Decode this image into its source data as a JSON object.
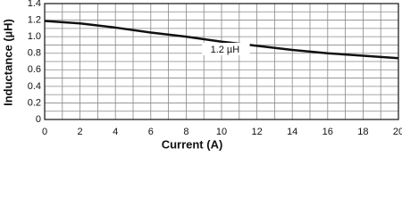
{
  "chart_data": {
    "type": "line",
    "x": [
      0,
      2,
      4,
      6,
      8,
      10,
      12,
      14,
      16,
      18,
      20
    ],
    "series": [
      {
        "name": "1.2 µH",
        "color": "#111111",
        "values": [
          1.19,
          1.16,
          1.11,
          1.05,
          1.0,
          0.94,
          0.89,
          0.84,
          0.8,
          0.77,
          0.74
        ]
      }
    ],
    "xlabel": "Current (A)",
    "ylabel": "Inductance (µH)",
    "xlim": [
      0,
      20
    ],
    "xticks": [
      0,
      2,
      4,
      6,
      8,
      10,
      12,
      14,
      16,
      18,
      20
    ],
    "ylim": [
      0,
      1.4
    ],
    "yticks": [
      0,
      0.2,
      0.4,
      0.6,
      {
        "value": 0.8,
        "label": "0.8"
      },
      {
        "value": 1.0,
        "label": "1.0"
      },
      1.2,
      1.4
    ],
    "grid": true
  }
}
